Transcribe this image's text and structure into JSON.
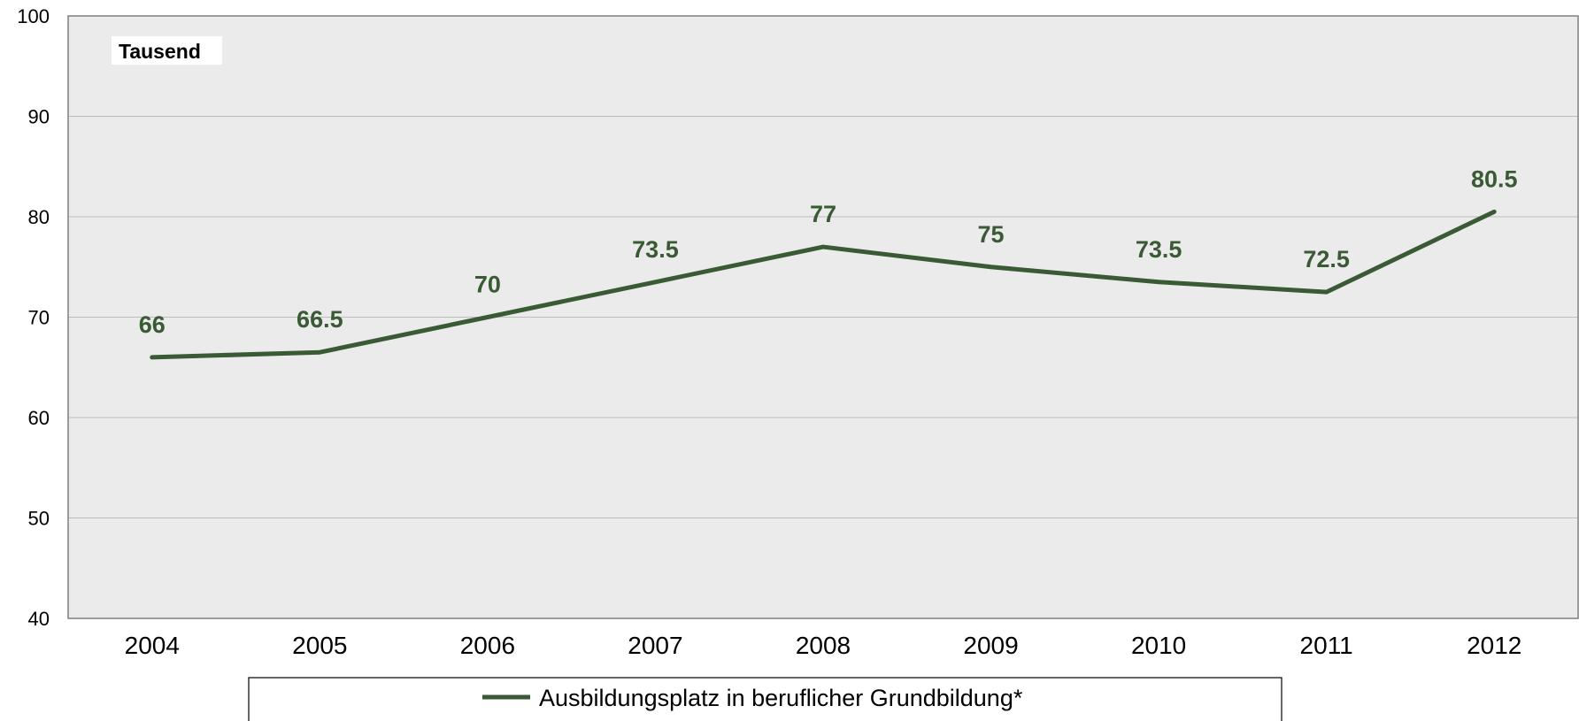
{
  "chart_data": {
    "type": "line",
    "categories": [
      "2004",
      "2005",
      "2006",
      "2007",
      "2008",
      "2009",
      "2010",
      "2011",
      "2012"
    ],
    "series": [
      {
        "name": "Ausbildungsplatz in beruflicher Grundbildung*",
        "values": [
          66,
          66.5,
          70,
          73.5,
          77,
          75,
          73.5,
          72.5,
          80.5
        ],
        "labels": [
          "66",
          "66.5",
          "70",
          "73.5",
          "77",
          "75",
          "73.5",
          "72.5",
          "80.5"
        ]
      }
    ],
    "ylim": [
      40,
      100
    ],
    "yticks": [
      40,
      50,
      60,
      70,
      80,
      90,
      100
    ],
    "unit_label": "Tausend",
    "grid": true,
    "legend_position": "bottom",
    "colors": {
      "series": "#3a5a35",
      "plot_background": "#ebebeb",
      "gridline": "#bdbdbd",
      "axis": "#7f7f7f"
    }
  }
}
